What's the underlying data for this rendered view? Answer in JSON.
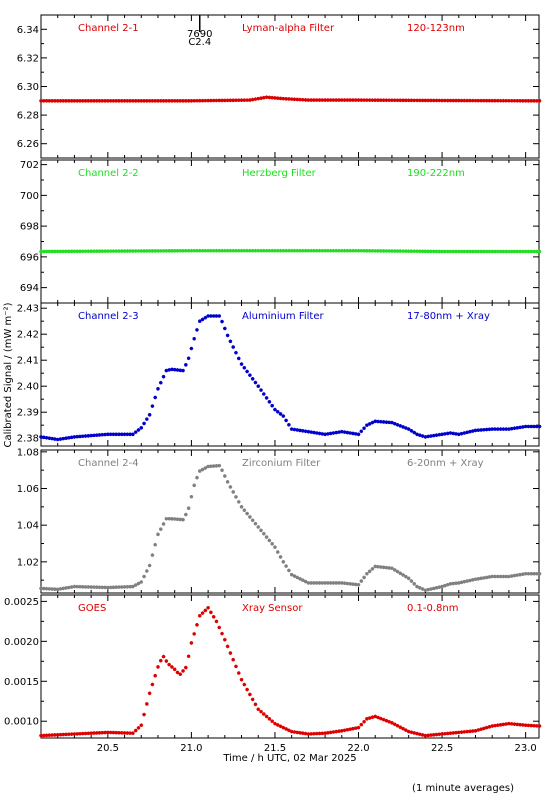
{
  "figure": {
    "ylabel": "Calibrated Signal / (mW m⁻²)",
    "xlabel": "Time / h UTC, 02 Mar 2025",
    "footnote": "(1 minute averages)",
    "marker": {
      "x": 21.05,
      "label_top": "7690",
      "label_bottom": "C2.4"
    },
    "xlim": [
      20.1,
      23.08
    ],
    "x_ticks": [
      20.5,
      21.0,
      21.5,
      22.0,
      22.5,
      23.0
    ],
    "x_tick_labels": [
      "20.5",
      "21.0",
      "21.5",
      "22.0",
      "22.5",
      "23.0"
    ]
  },
  "chart_data": [
    {
      "type": "scatter",
      "channel": "Channel 2-1",
      "filter": "Lyman-alpha Filter",
      "band": "120-123nm",
      "color": "#dd0000",
      "ylim": [
        6.25,
        6.35
      ],
      "y_ticks": [
        6.26,
        6.28,
        6.3,
        6.32,
        6.34
      ],
      "y_tick_labels": [
        "6.26",
        "6.28",
        "6.30",
        "6.32",
        "6.34"
      ],
      "x": [
        20.1,
        21.0,
        21.35,
        21.45,
        21.55,
        21.7,
        22.0,
        22.5,
        23.0,
        23.08
      ],
      "y": [
        6.29,
        6.29,
        6.2905,
        6.2925,
        6.2915,
        6.2905,
        6.2905,
        6.2902,
        6.29,
        6.29
      ]
    },
    {
      "type": "scatter",
      "channel": "Channel 2-2",
      "filter": "Herzberg Filter",
      "band": "190-222nm",
      "color": "#22dd22",
      "ylim": [
        693,
        702.3
      ],
      "y_ticks": [
        694,
        696,
        698,
        700,
        702
      ],
      "y_tick_labels": [
        "694",
        "696",
        "698",
        "700",
        "702"
      ],
      "x": [
        20.1,
        21.0,
        21.5,
        22.0,
        22.5,
        23.0,
        23.08
      ],
      "y": [
        696.35,
        696.4,
        696.4,
        696.4,
        696.35,
        696.35,
        696.35
      ]
    },
    {
      "type": "scatter",
      "channel": "Channel 2-3",
      "filter": "Aluminium Filter",
      "band": "17-80nm + Xray",
      "color": "#0000cc",
      "ylim": [
        2.377,
        2.432
      ],
      "y_ticks": [
        2.38,
        2.39,
        2.4,
        2.41,
        2.42,
        2.43
      ],
      "y_tick_labels": [
        "2.38",
        "2.39",
        "2.40",
        "2.41",
        "2.42",
        "2.43"
      ],
      "x": [
        20.1,
        20.2,
        20.3,
        20.5,
        20.65,
        20.7,
        20.75,
        20.8,
        20.85,
        20.88,
        20.95,
        20.98,
        21.02,
        21.05,
        21.1,
        21.17,
        21.22,
        21.3,
        21.4,
        21.5,
        21.55,
        21.6,
        21.7,
        21.8,
        21.9,
        22.0,
        22.05,
        22.1,
        22.2,
        22.3,
        22.35,
        22.4,
        22.5,
        22.55,
        22.6,
        22.7,
        22.8,
        22.9,
        23.0,
        23.08
      ],
      "y": [
        2.3805,
        2.3795,
        2.3805,
        2.3815,
        2.3815,
        2.384,
        2.389,
        2.399,
        2.406,
        2.4065,
        2.406,
        2.41,
        2.419,
        2.425,
        2.427,
        2.427,
        2.419,
        2.4085,
        2.4,
        2.391,
        2.3885,
        2.3835,
        2.3825,
        2.3815,
        2.3825,
        2.3815,
        2.385,
        2.3865,
        2.386,
        2.3835,
        2.3815,
        2.3805,
        2.3815,
        2.382,
        2.3815,
        2.383,
        2.3835,
        2.3835,
        2.3845,
        2.3845
      ]
    },
    {
      "type": "scatter",
      "channel": "Channel 2-4",
      "filter": "Zirconium Filter",
      "band": "6-20nm + Xray",
      "color": "#808080",
      "ylim": [
        1.003,
        1.081
      ],
      "y_ticks": [
        1.02,
        1.04,
        1.06,
        1.08
      ],
      "y_tick_labels": [
        "1.02",
        "1.04",
        "1.06",
        "1.08"
      ],
      "x": [
        20.1,
        20.2,
        20.3,
        20.5,
        20.65,
        20.7,
        20.75,
        20.8,
        20.85,
        20.88,
        20.95,
        20.98,
        21.02,
        21.05,
        21.1,
        21.17,
        21.22,
        21.3,
        21.4,
        21.5,
        21.55,
        21.6,
        21.7,
        21.8,
        21.9,
        22.0,
        22.05,
        22.1,
        22.2,
        22.3,
        22.35,
        22.4,
        22.5,
        22.55,
        22.6,
        22.7,
        22.8,
        22.9,
        23.0,
        23.08
      ],
      "y": [
        1.0055,
        1.005,
        1.0065,
        1.006,
        1.0065,
        1.009,
        1.018,
        1.035,
        1.0435,
        1.0435,
        1.043,
        1.048,
        1.063,
        1.0695,
        1.072,
        1.0725,
        1.063,
        1.05,
        1.039,
        1.028,
        1.02,
        1.013,
        1.0085,
        1.0085,
        1.0085,
        1.0075,
        1.0135,
        1.0175,
        1.0165,
        1.011,
        1.0065,
        1.0045,
        1.0065,
        1.008,
        1.0085,
        1.0105,
        1.012,
        1.012,
        1.0135,
        1.0135
      ]
    },
    {
      "type": "scatter",
      "channel": "GOES",
      "filter": "Xray Sensor",
      "band": "0.1-0.8nm",
      "color": "#dd0000",
      "ylim": [
        0.00079,
        0.00258
      ],
      "y_ticks": [
        0.001,
        0.0015,
        0.002,
        0.0025
      ],
      "y_tick_labels": [
        "0.0010",
        "0.0015",
        "0.0020",
        "0.0025"
      ],
      "x": [
        20.1,
        20.2,
        20.3,
        20.5,
        20.65,
        20.7,
        20.75,
        20.8,
        20.83,
        20.86,
        20.9,
        20.93,
        20.97,
        21.0,
        21.05,
        21.1,
        21.15,
        21.2,
        21.3,
        21.4,
        21.5,
        21.6,
        21.7,
        21.8,
        21.9,
        22.0,
        22.05,
        22.1,
        22.2,
        22.3,
        22.4,
        22.5,
        22.6,
        22.7,
        22.8,
        22.9,
        23.0,
        23.08
      ],
      "y": [
        0.00082,
        0.00083,
        0.00084,
        0.00086,
        0.00085,
        0.00095,
        0.00135,
        0.00168,
        0.00182,
        0.00172,
        0.00165,
        0.00158,
        0.00168,
        0.00198,
        0.00232,
        0.00242,
        0.00225,
        0.00202,
        0.00152,
        0.00115,
        0.00097,
        0.00087,
        0.00084,
        0.00085,
        0.00088,
        0.00092,
        0.00103,
        0.00106,
        0.00098,
        0.00087,
        0.00082,
        0.00084,
        0.00086,
        0.00088,
        0.00094,
        0.00097,
        0.00095,
        0.00094
      ]
    }
  ]
}
